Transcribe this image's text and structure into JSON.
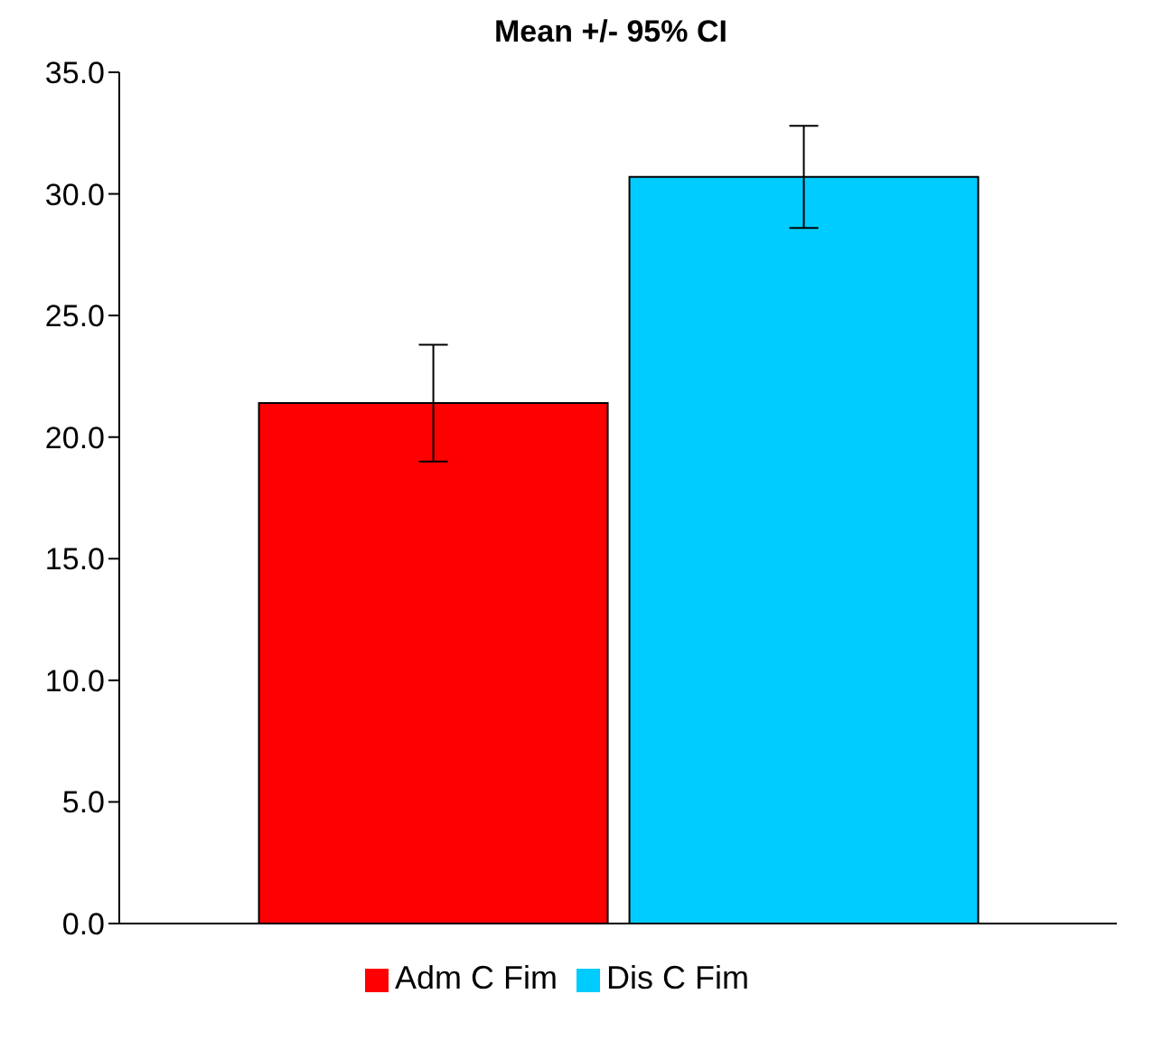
{
  "chart_data": {
    "type": "bar",
    "title": "Mean +/- 95%  CI",
    "categories": [
      null
    ],
    "series": [
      {
        "name": "Adm C Fim",
        "color": "#ff0000",
        "values": [
          21.4
        ],
        "errors": [
          [
            19.0,
            23.8
          ]
        ]
      },
      {
        "name": "Dis C Fim",
        "color": "#00ccff",
        "values": [
          30.7
        ],
        "errors": [
          [
            28.6,
            32.8
          ]
        ]
      }
    ],
    "ylim": [
      0,
      35
    ],
    "yticks": [
      {
        "value": 0,
        "label": "0.0"
      },
      {
        "value": 5,
        "label": "5.0"
      },
      {
        "value": 10,
        "label": "10.0"
      },
      {
        "value": 15,
        "label": "15.0"
      },
      {
        "value": 20,
        "label": "20.0"
      },
      {
        "value": 25,
        "label": "25.0"
      },
      {
        "value": 30,
        "label": "30.0"
      },
      {
        "value": 35,
        "label": "35.0"
      }
    ],
    "grid": false,
    "legend": "bottom"
  }
}
